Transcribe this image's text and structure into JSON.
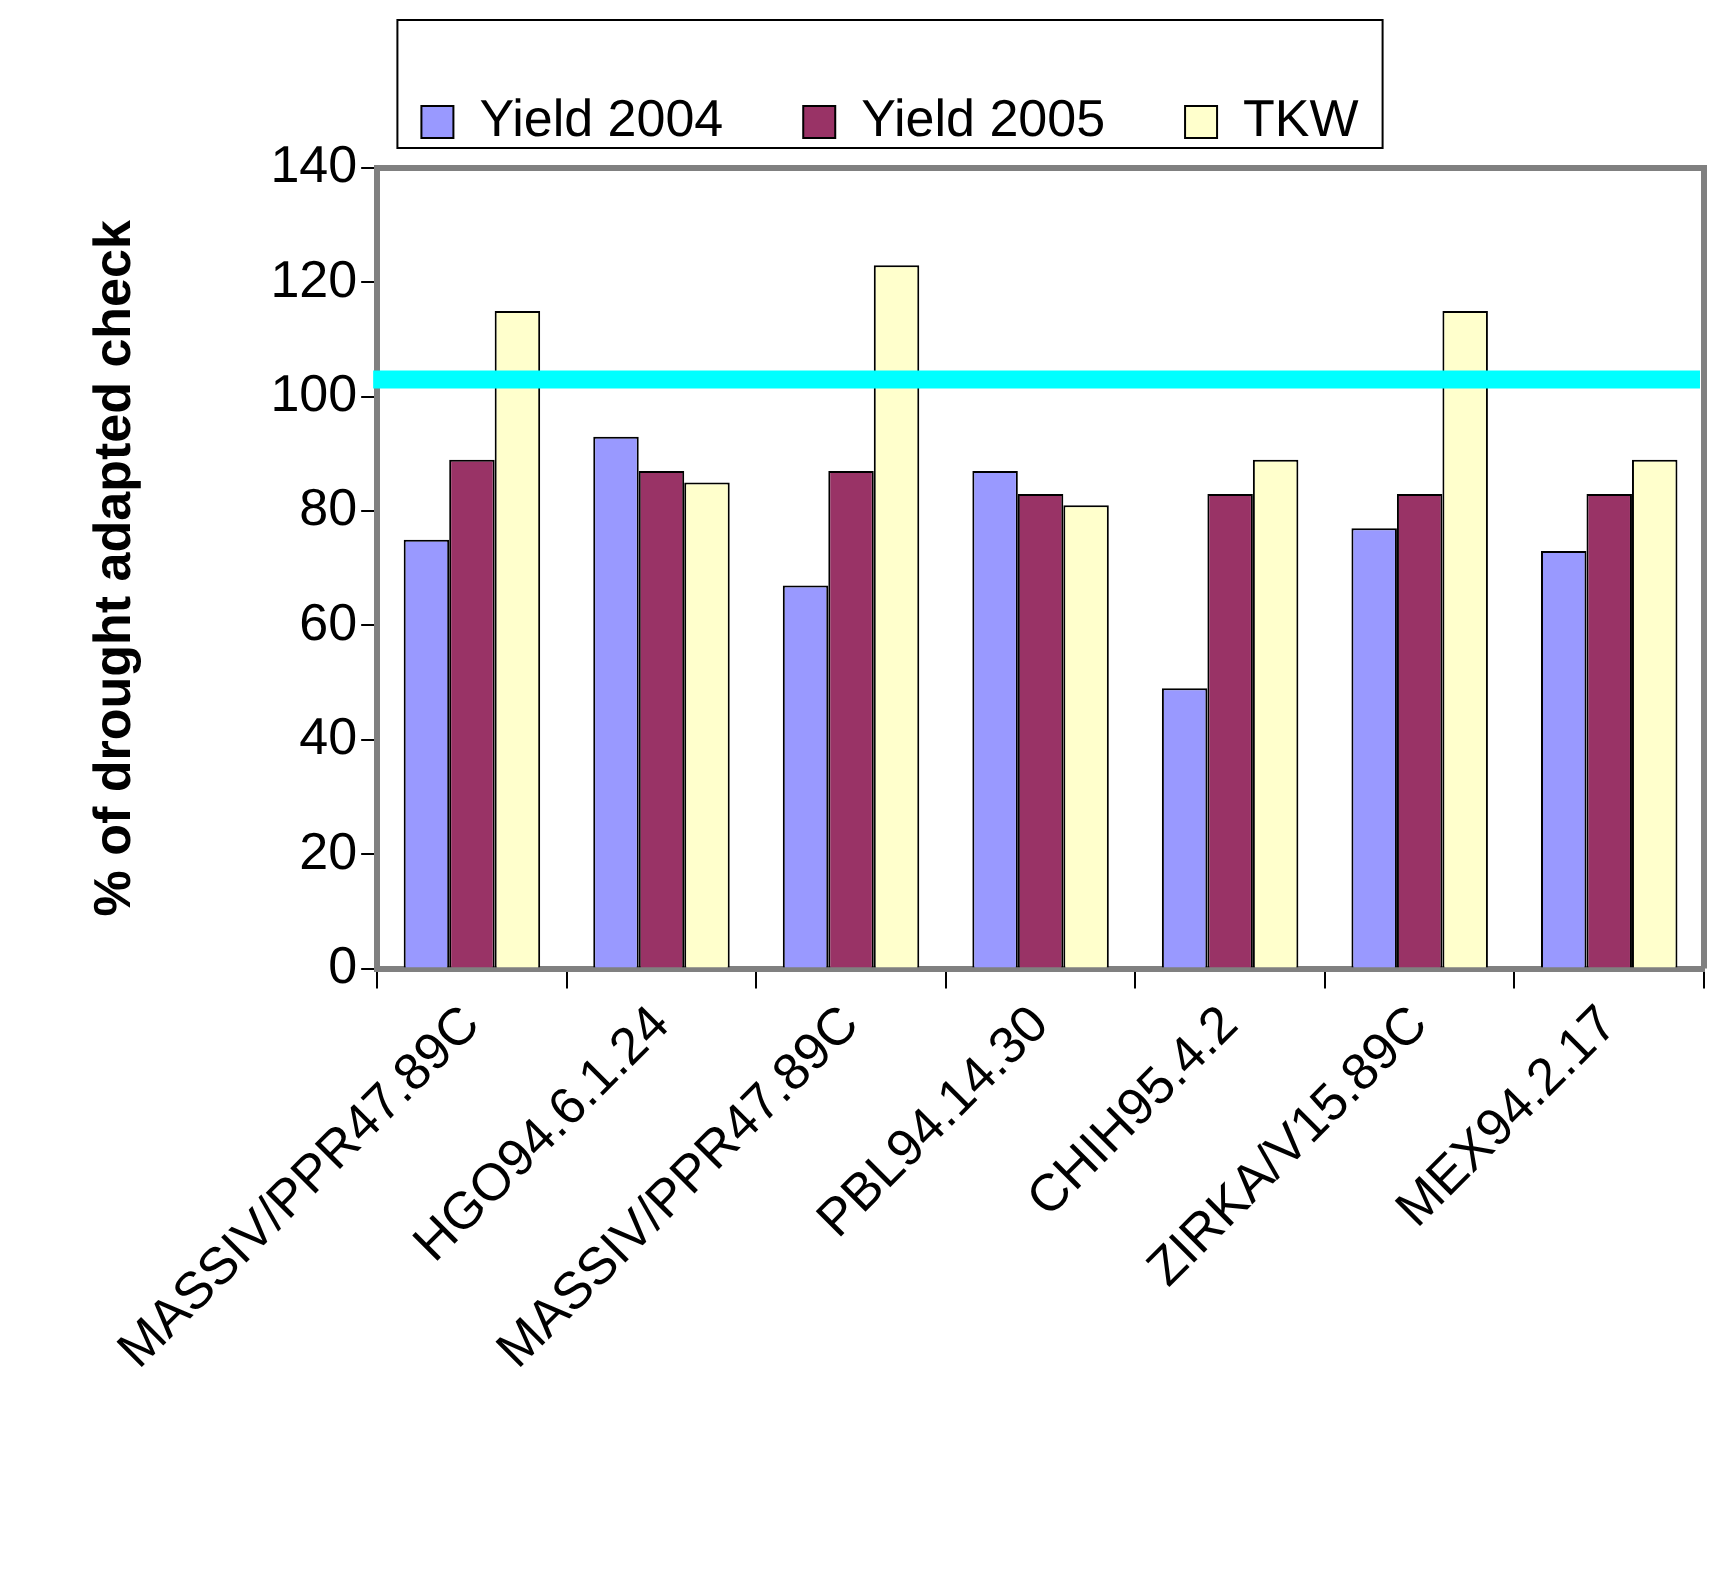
{
  "chart_data": {
    "type": "bar",
    "ylabel": "% of drought adapted check",
    "categories": [
      "MASSIV/PPR47.89C",
      "HGO94.6.1.24",
      "MASSIV/PPR47.89C",
      "PBL94.14.30",
      "CHIH95.4.2",
      "ZIRKA/V15.89C",
      "MEX94.2.17"
    ],
    "series": [
      {
        "name": "Yield 2004",
        "color": "#9999ff",
        "values": [
          75,
          93,
          67,
          87,
          49,
          77,
          73
        ]
      },
      {
        "name": "Yield 2005",
        "color": "#993366",
        "values": [
          89,
          87,
          87,
          83,
          83,
          83,
          83
        ]
      },
      {
        "name": "TKW",
        "color": "#ffffcc",
        "values": [
          115,
          85,
          123,
          81,
          89,
          115,
          89
        ]
      }
    ],
    "ylim": [
      0,
      140
    ],
    "yticks": [
      0,
      20,
      40,
      60,
      80,
      100,
      120,
      140
    ],
    "grid": false,
    "legend": "top",
    "ref_lines": [
      {
        "axis": "y",
        "value": 103,
        "color": "#00ffff"
      }
    ]
  }
}
